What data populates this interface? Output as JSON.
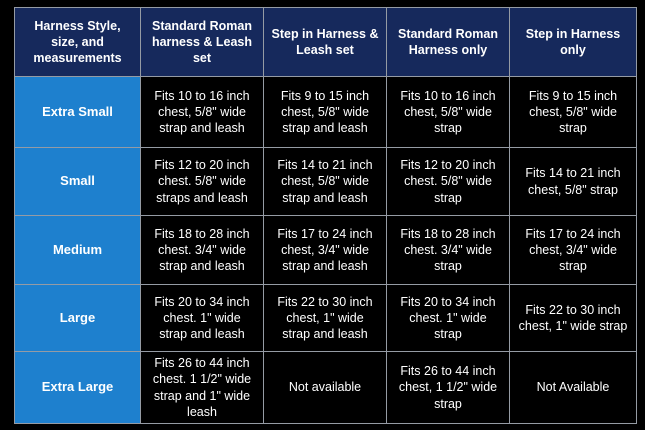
{
  "colors": {
    "page_bg": "#000000",
    "header_bg": "#16295c",
    "size_column_bg": "#1e80ce",
    "data_cell_bg": "#000000",
    "border": "#959ba4",
    "text": "#ffffff"
  },
  "table": {
    "headers": [
      "Harness Style, size, and measurements",
      "Standard Roman harness & Leash set",
      "Step in Harness & Leash set",
      "Standard Roman Harness only",
      "Step in Harness only"
    ],
    "rows": [
      {
        "size": "Extra Small",
        "cells": [
          "Fits 10 to 16 inch chest, 5/8\" wide strap and leash",
          "Fits 9 to 15 inch chest, 5/8\" wide strap and leash",
          "Fits 10 to 16 inch chest, 5/8\" wide strap",
          "Fits 9 to 15 inch chest, 5/8\" wide strap"
        ]
      },
      {
        "size": "Small",
        "cells": [
          "Fits 12 to 20 inch chest. 5/8\" wide straps and leash",
          "Fits 14 to 21 inch chest, 5/8\" wide strap and leash",
          "Fits 12 to 20 inch chest. 5/8\" wide strap",
          "Fits 14 to 21 inch chest, 5/8\" strap"
        ]
      },
      {
        "size": "Medium",
        "cells": [
          "Fits 18 to 28 inch chest. 3/4\" wide strap and leash",
          "Fits 17 to 24 inch chest, 3/4\" wide strap and leash",
          "Fits 18 to 28 inch chest. 3/4\" wide strap",
          "Fits 17 to 24 inch chest, 3/4\" wide strap"
        ]
      },
      {
        "size": "Large",
        "cells": [
          "Fits 20 to 34 inch chest. 1\" wide strap and leash",
          "Fits 22 to 30 inch chest, 1\" wide strap and leash",
          "Fits 20 to 34 inch chest. 1\" wide strap",
          "Fits 22 to 30 inch chest, 1\" wide strap"
        ]
      },
      {
        "size": "Extra Large",
        "cells": [
          "Fits 26 to 44 inch chest. 1 1/2\" wide strap and 1\" wide leash",
          "Not available",
          "Fits 26 to 44 inch chest, 1 1/2\" wide strap",
          "Not Available"
        ]
      }
    ]
  }
}
